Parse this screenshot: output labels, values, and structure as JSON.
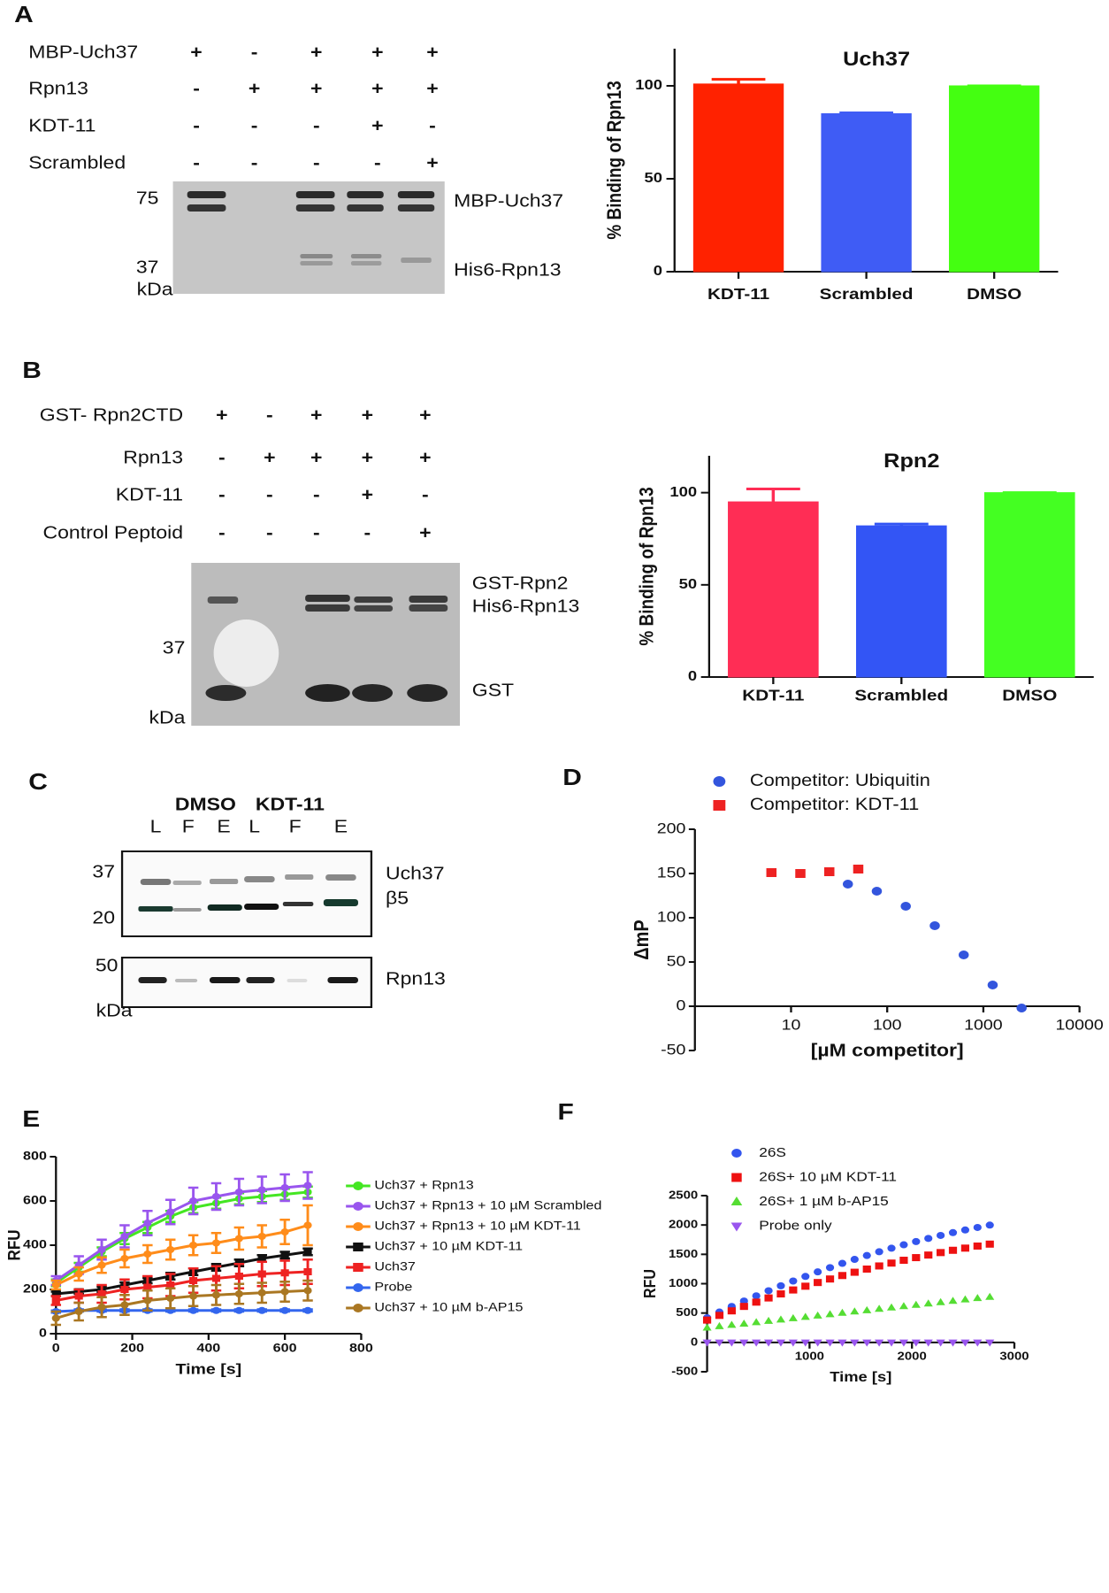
{
  "panels": [
    "A",
    "B",
    "C",
    "D",
    "E",
    "F"
  ],
  "gel_a": {
    "rows": [
      {
        "label": "MBP-Uch37",
        "signs": [
          "+",
          "-",
          "+",
          "+",
          "+"
        ]
      },
      {
        "label": "Rpn13",
        "signs": [
          "-",
          "+",
          "+",
          "+",
          "+"
        ]
      },
      {
        "label": "KDT-11",
        "signs": [
          "-",
          "-",
          "-",
          "+",
          "-"
        ]
      },
      {
        "label": "Scrambled",
        "signs": [
          "-",
          "-",
          "-",
          "-",
          "+"
        ]
      }
    ],
    "markers": [
      "75",
      "37",
      "kDa"
    ],
    "bands": [
      "MBP-Uch37",
      "His6-Rpn13"
    ]
  },
  "gel_b": {
    "rows": [
      {
        "label": "GST- Rpn2CTD",
        "signs": [
          "+",
          "-",
          "+",
          "+",
          "+"
        ]
      },
      {
        "label": "Rpn13",
        "signs": [
          "-",
          "+",
          "+",
          "+",
          "+"
        ]
      },
      {
        "label": "KDT-11",
        "signs": [
          "-",
          "-",
          "-",
          "+",
          "-"
        ]
      },
      {
        "label": "Control Peptoid",
        "signs": [
          "-",
          "-",
          "-",
          "-",
          "+"
        ]
      }
    ],
    "markers": [
      "37",
      "kDa"
    ],
    "bands": [
      "GST-Rpn2",
      "His6-Rpn13",
      "GST"
    ]
  },
  "gel_c": {
    "groups": [
      "DMSO",
      "KDT-11"
    ],
    "lanes": [
      "L",
      "F",
      "E",
      "L",
      "F",
      "E"
    ],
    "markers": [
      "37",
      "20",
      "50",
      "kDa"
    ],
    "bands": [
      "Uch37",
      "β5",
      "Rpn13"
    ]
  },
  "chart_data": [
    {
      "type": "bar",
      "title": "Uch37",
      "ylabel": "% Binding of Rpn13",
      "categories": [
        "KDT-11",
        "Scrambled",
        "DMSO"
      ],
      "values": [
        101,
        85,
        100
      ],
      "errors": [
        2.5,
        0.5,
        0
      ],
      "colors": [
        "#ff2200",
        "#3f5cf5",
        "#44ff11"
      ],
      "ylim": [
        0,
        120
      ],
      "yticks": [
        0,
        50,
        100
      ]
    },
    {
      "type": "bar",
      "title": "Rpn2",
      "ylabel": "% Binding of Rpn13",
      "categories": [
        "KDT-11",
        "Scrambled",
        "DMSO"
      ],
      "values": [
        95,
        82,
        100
      ],
      "errors": [
        7,
        1,
        0
      ],
      "colors": [
        "#ff2d55",
        "#3355f5",
        "#44ff22"
      ],
      "ylim": [
        0,
        120
      ],
      "yticks": [
        0,
        50,
        100
      ]
    },
    {
      "type": "scatter",
      "xlabel": "[µM competitor]",
      "ylabel": "ΔmP",
      "xscale": "log",
      "xlim": [
        1,
        10000
      ],
      "xticks": [
        10,
        100,
        1000,
        10000
      ],
      "ylim": [
        -50,
        200
      ],
      "yticks": [
        -50,
        0,
        50,
        100,
        150,
        200
      ],
      "series": [
        {
          "name": "Competitor: Ubiquitin",
          "color": "#3355dd",
          "marker": "circle",
          "x": [
            39,
            78,
            156,
            312.5,
            625,
            1250,
            2500
          ],
          "values": [
            138,
            130,
            113,
            91,
            58,
            24,
            -2
          ]
        },
        {
          "name": "Competitor: KDT-11",
          "color": "#ee2222",
          "marker": "square",
          "x": [
            6.25,
            12.5,
            25,
            50
          ],
          "values": [
            151,
            150,
            152,
            155
          ]
        }
      ]
    },
    {
      "type": "line",
      "xlabel": "Time [s]",
      "ylabel": "RFU",
      "x": [
        0,
        60,
        120,
        180,
        240,
        300,
        360,
        420,
        480,
        540,
        600,
        660
      ],
      "xlim": [
        0,
        800
      ],
      "xticks": [
        0,
        200,
        400,
        600,
        800
      ],
      "ylim": [
        0,
        800
      ],
      "yticks": [
        0,
        200,
        400,
        600,
        800
      ],
      "series": [
        {
          "name": "Uch37 + Rpn13",
          "color": "#44e622",
          "marker": "circle",
          "values": [
            230,
            300,
            370,
            430,
            480,
            530,
            570,
            590,
            610,
            620,
            630,
            640
          ],
          "errors": [
            15,
            20,
            20,
            25,
            25,
            25,
            25,
            25,
            25,
            25,
            25,
            25
          ]
        },
        {
          "name": "Uch37 + Rpn13 + 10 µM Scrambled",
          "color": "#9955ee",
          "marker": "circle",
          "values": [
            240,
            310,
            380,
            440,
            500,
            550,
            600,
            620,
            640,
            650,
            660,
            670
          ],
          "errors": [
            20,
            40,
            45,
            50,
            55,
            55,
            60,
            60,
            60,
            60,
            60,
            60
          ]
        },
        {
          "name": "Uch37 + Rpn13 + 10 µM KDT-11",
          "color": "#ff8c1a",
          "marker": "circle",
          "values": [
            220,
            270,
            310,
            340,
            360,
            380,
            400,
            410,
            430,
            440,
            460,
            490
          ],
          "errors": [
            20,
            30,
            35,
            40,
            40,
            45,
            45,
            45,
            50,
            50,
            55,
            90
          ]
        },
        {
          "name": "Uch37 + 10 µM KDT-11",
          "color": "#111111",
          "marker": "square",
          "values": [
            180,
            190,
            200,
            220,
            240,
            260,
            280,
            300,
            320,
            340,
            355,
            370
          ],
          "errors": [
            10,
            10,
            12,
            12,
            12,
            15,
            15,
            15,
            15,
            15,
            15,
            15
          ]
        },
        {
          "name": "Uch37",
          "color": "#ee2222",
          "marker": "square",
          "values": [
            150,
            170,
            180,
            200,
            210,
            220,
            240,
            250,
            260,
            270,
            275,
            280
          ],
          "errors": [
            20,
            30,
            40,
            45,
            50,
            50,
            55,
            55,
            55,
            55,
            55,
            55
          ]
        },
        {
          "name": "Probe",
          "color": "#3366ee",
          "marker": "circle",
          "values": [
            100,
            105,
            105,
            105,
            105,
            105,
            105,
            105,
            105,
            105,
            105,
            105
          ],
          "errors": [
            5,
            5,
            5,
            5,
            5,
            5,
            5,
            5,
            5,
            5,
            5,
            5
          ]
        },
        {
          "name": "Uch37 + 10 µM b-AP15",
          "color": "#aa7722",
          "marker": "circle",
          "values": [
            70,
            100,
            120,
            130,
            150,
            160,
            170,
            175,
            180,
            185,
            190,
            195
          ],
          "errors": [
            30,
            40,
            45,
            45,
            45,
            45,
            45,
            45,
            45,
            45,
            45,
            45
          ]
        }
      ]
    },
    {
      "type": "scatter",
      "xlabel": "Time [s]",
      "ylabel": "RFU",
      "x": [
        0,
        120,
        240,
        360,
        480,
        600,
        720,
        840,
        960,
        1080,
        1200,
        1320,
        1440,
        1560,
        1680,
        1800,
        1920,
        2040,
        2160,
        2280,
        2400,
        2520,
        2640,
        2760
      ],
      "xlim": [
        0,
        3000
      ],
      "xticks": [
        1000,
        2000,
        3000
      ],
      "ylim": [
        -500,
        2500
      ],
      "yticks": [
        -500,
        0,
        500,
        1000,
        1500,
        2000,
        2500
      ],
      "series": [
        {
          "name": "26S",
          "color": "#3355ee",
          "marker": "circle",
          "values": [
            420,
            517,
            612,
            704,
            793,
            880,
            964,
            1045,
            1124,
            1201,
            1274,
            1346,
            1414,
            1480,
            1544,
            1604,
            1663,
            1718,
            1771,
            1822,
            1870,
            1915,
            1958,
            1998
          ]
        },
        {
          "name": "26S+ 10 µM KDT-11",
          "color": "#ee1111",
          "marker": "square",
          "values": [
            380,
            460,
            537,
            613,
            686,
            757,
            826,
            893,
            957,
            1020,
            1080,
            1139,
            1195,
            1249,
            1302,
            1351,
            1399,
            1444,
            1488,
            1530,
            1569,
            1606,
            1641,
            1674
          ]
        },
        {
          "name": "26S+ 1 µM b-AP15",
          "color": "#55dd33",
          "marker": "triangle",
          "values": [
            250,
            273,
            296,
            318,
            341,
            364,
            387,
            410,
            432,
            455,
            478,
            501,
            524,
            546,
            569,
            592,
            615,
            638,
            660,
            683,
            706,
            729,
            752,
            774
          ]
        },
        {
          "name": "Probe only",
          "color": "#9955ee",
          "marker": "triangle-down",
          "values": [
            0,
            0,
            0,
            0,
            0,
            0,
            0,
            0,
            0,
            0,
            0,
            0,
            0,
            0,
            0,
            0,
            0,
            0,
            0,
            0,
            0,
            0,
            0,
            0
          ]
        }
      ]
    }
  ]
}
